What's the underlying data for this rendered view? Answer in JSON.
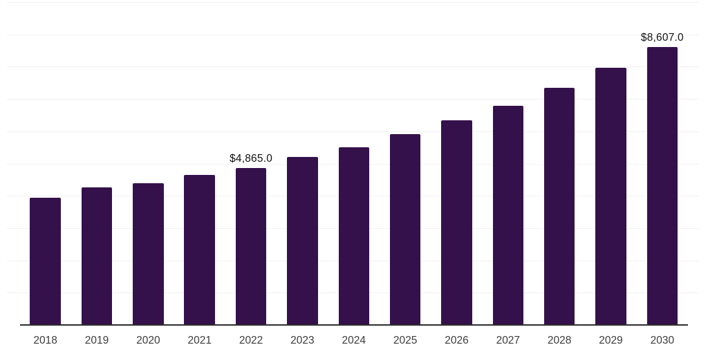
{
  "chart_data": {
    "type": "bar",
    "title": "",
    "xlabel": "",
    "ylabel": "",
    "categories": [
      "2018",
      "2019",
      "2020",
      "2021",
      "2022",
      "2023",
      "2024",
      "2025",
      "2026",
      "2027",
      "2028",
      "2029",
      "2030"
    ],
    "values": [
      3950,
      4260,
      4390,
      4640,
      4865,
      5200,
      5510,
      5900,
      6330,
      6780,
      7350,
      7960,
      8607
    ],
    "value_labels": [
      "",
      "",
      "",
      "",
      "$4,865.0",
      "",
      "",
      "",
      "",
      "",
      "",
      "",
      "$8,607.0"
    ],
    "ylim": [
      0,
      10000
    ],
    "gridline_step": 1000,
    "grid": "horizontal",
    "legend": "none",
    "y_axis_labels_visible": false,
    "colors": {
      "bar": "#35114B",
      "gridline": "#F2F2F2",
      "axis_line": "#2E2E2E",
      "tick_label": "#3C3C3C",
      "value_label": "#121212",
      "background": "#FFFFFF"
    }
  }
}
